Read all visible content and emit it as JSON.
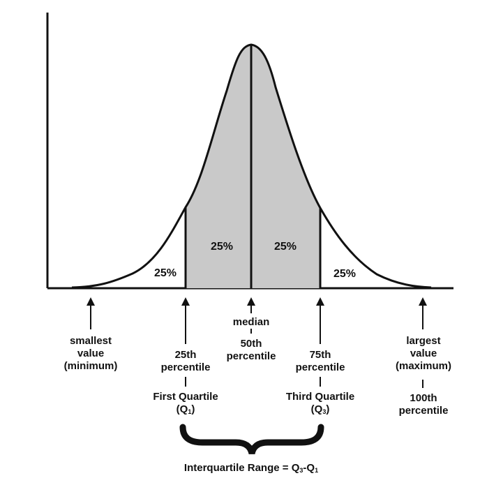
{
  "areas": {
    "left_tail": "25%",
    "second_quarter": "25%",
    "third_quarter": "25%",
    "right_tail": "25%"
  },
  "markers": {
    "minimum": {
      "line1": "smallest",
      "line2": "value",
      "line3": "(minimum)"
    },
    "first_quartile": {
      "line1": "25th",
      "line2": "percentile",
      "name": "First Quartile",
      "symbol_open": "(Q",
      "symbol_sub": "1",
      "symbol_close": ")"
    },
    "median": {
      "name": "median",
      "line1": "50th",
      "line2": "percentile"
    },
    "third_quartile": {
      "line1": "75th",
      "line2": "percentile",
      "name": "Third Quartile",
      "symbol_open": "(Q",
      "symbol_sub": "3",
      "symbol_close": ")"
    },
    "maximum": {
      "line1": "largest",
      "line2": "value",
      "line3": "(maximum)",
      "line4": "100th",
      "line5": "percentile"
    }
  },
  "iqr": {
    "prefix": "Interquartile Range = Q",
    "sub_a": "3",
    "dash": "-Q",
    "sub_b": "1"
  },
  "colors": {
    "shaded_fill": "#c9c9c9",
    "line": "#111111",
    "background": "#ffffff"
  }
}
